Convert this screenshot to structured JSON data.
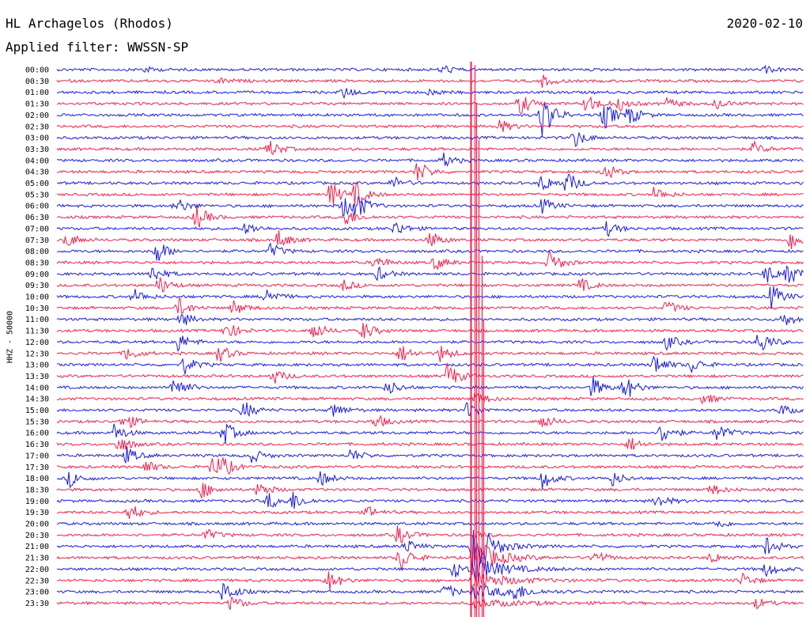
{
  "header": {
    "station": "HL Archagelos (Rhodos)",
    "filter": "Applied filter: WWSSN-SP",
    "date": "2020-02-10"
  },
  "colors": {
    "blue": "#1a1adc",
    "red": "#f0204e",
    "background": "#ffffff"
  },
  "chart_data": {
    "type": "line",
    "title": "HL Archagelos (Rhodos)",
    "subtitle": "Applied filter: WWSSN-SP",
    "ylabel": "HHZ - 50000",
    "xlabel": "",
    "grid": false,
    "rows": [
      "00:00",
      "00:30",
      "01:00",
      "01:30",
      "02:00",
      "02:30",
      "03:00",
      "03:30",
      "04:00",
      "04:30",
      "05:00",
      "05:30",
      "06:00",
      "06:30",
      "07:00",
      "07:30",
      "08:00",
      "08:30",
      "09:00",
      "09:30",
      "10:00",
      "10:30",
      "11:00",
      "11:30",
      "12:00",
      "12:30",
      "13:00",
      "13:30",
      "14:00",
      "14:30",
      "15:00",
      "15:30",
      "16:00",
      "16:30",
      "17:00",
      "17:30",
      "18:00",
      "18:30",
      "19:00",
      "19:30",
      "20:00",
      "20:30",
      "21:00",
      "21:30",
      "22:00",
      "22:30",
      "23:00",
      "23:30"
    ],
    "row_colors": [
      "blue",
      "red"
    ],
    "x_range_minutes": [
      0,
      30
    ],
    "major_event": {
      "row": "21:00",
      "minute": 16.7
    },
    "events": [
      {
        "row": "00:00",
        "minute": 3.5,
        "amp": 0.3
      },
      {
        "row": "00:00",
        "minute": 15.5,
        "amp": 0.5
      },
      {
        "row": "00:00",
        "minute": 28.5,
        "amp": 0.3
      },
      {
        "row": "00:30",
        "minute": 6.5,
        "amp": 0.3
      },
      {
        "row": "00:30",
        "minute": 19.5,
        "amp": 0.6
      },
      {
        "row": "01:00",
        "minute": 11.5,
        "amp": 0.6
      },
      {
        "row": "01:00",
        "minute": 15.0,
        "amp": 0.4
      },
      {
        "row": "01:30",
        "minute": 18.6,
        "amp": 1.2
      },
      {
        "row": "01:30",
        "minute": 21.3,
        "amp": 1.1
      },
      {
        "row": "01:30",
        "minute": 22.6,
        "amp": 0.7
      },
      {
        "row": "01:30",
        "minute": 24.5,
        "amp": 0.6
      },
      {
        "row": "01:30",
        "minute": 26.5,
        "amp": 0.5
      },
      {
        "row": "02:00",
        "minute": 19.5,
        "amp": 2.6
      },
      {
        "row": "02:00",
        "minute": 22.0,
        "amp": 1.5
      },
      {
        "row": "02:00",
        "minute": 23.0,
        "amp": 1.0
      },
      {
        "row": "02:30",
        "minute": 17.8,
        "amp": 0.7
      },
      {
        "row": "03:00",
        "minute": 20.8,
        "amp": 1.0
      },
      {
        "row": "03:30",
        "minute": 8.5,
        "amp": 1.0
      },
      {
        "row": "03:30",
        "minute": 28.0,
        "amp": 0.7
      },
      {
        "row": "04:00",
        "minute": 15.5,
        "amp": 0.8
      },
      {
        "row": "04:30",
        "minute": 14.5,
        "amp": 1.2
      },
      {
        "row": "04:30",
        "minute": 22.0,
        "amp": 1.0
      },
      {
        "row": "05:00",
        "minute": 13.5,
        "amp": 0.7
      },
      {
        "row": "05:00",
        "minute": 19.5,
        "amp": 1.0
      },
      {
        "row": "05:00",
        "minute": 20.5,
        "amp": 1.2
      },
      {
        "row": "05:30",
        "minute": 11.0,
        "amp": 1.4
      },
      {
        "row": "05:30",
        "minute": 12.0,
        "amp": 1.3
      },
      {
        "row": "05:30",
        "minute": 24.0,
        "amp": 0.8
      },
      {
        "row": "06:00",
        "minute": 4.8,
        "amp": 0.9
      },
      {
        "row": "06:00",
        "minute": 11.5,
        "amp": 1.2
      },
      {
        "row": "06:00",
        "minute": 12.0,
        "amp": 1.4
      },
      {
        "row": "06:00",
        "minute": 19.5,
        "amp": 0.8
      },
      {
        "row": "06:30",
        "minute": 5.6,
        "amp": 1.3
      },
      {
        "row": "06:30",
        "minute": 11.6,
        "amp": 1.0
      },
      {
        "row": "07:00",
        "minute": 7.6,
        "amp": 0.7
      },
      {
        "row": "07:00",
        "minute": 13.6,
        "amp": 0.8
      },
      {
        "row": "07:00",
        "minute": 22.1,
        "amp": 0.8
      },
      {
        "row": "07:30",
        "minute": 0.4,
        "amp": 0.8
      },
      {
        "row": "07:30",
        "minute": 8.9,
        "amp": 1.0
      },
      {
        "row": "07:30",
        "minute": 15.0,
        "amp": 0.9
      },
      {
        "row": "07:30",
        "minute": 29.5,
        "amp": 1.2
      },
      {
        "row": "08:00",
        "minute": 4.0,
        "amp": 1.3
      },
      {
        "row": "08:00",
        "minute": 8.6,
        "amp": 0.8
      },
      {
        "row": "08:30",
        "minute": 12.8,
        "amp": 0.8
      },
      {
        "row": "08:30",
        "minute": 15.2,
        "amp": 0.8
      },
      {
        "row": "08:30",
        "minute": 19.8,
        "amp": 1.3
      },
      {
        "row": "09:00",
        "minute": 3.8,
        "amp": 1.0
      },
      {
        "row": "09:00",
        "minute": 12.9,
        "amp": 0.7
      },
      {
        "row": "09:00",
        "minute": 28.5,
        "amp": 1.0
      },
      {
        "row": "09:00",
        "minute": 29.3,
        "amp": 1.4
      },
      {
        "row": "09:30",
        "minute": 4.1,
        "amp": 1.0
      },
      {
        "row": "09:30",
        "minute": 11.5,
        "amp": 0.6
      },
      {
        "row": "09:30",
        "minute": 21.0,
        "amp": 0.8
      },
      {
        "row": "10:00",
        "minute": 3.1,
        "amp": 0.8
      },
      {
        "row": "10:00",
        "minute": 8.4,
        "amp": 1.0
      },
      {
        "row": "10:00",
        "minute": 28.7,
        "amp": 1.3
      },
      {
        "row": "10:30",
        "minute": 4.9,
        "amp": 1.0
      },
      {
        "row": "10:30",
        "minute": 7.1,
        "amp": 0.8
      },
      {
        "row": "10:30",
        "minute": 24.5,
        "amp": 0.8
      },
      {
        "row": "11:00",
        "minute": 5.0,
        "amp": 0.8
      },
      {
        "row": "11:00",
        "minute": 29.2,
        "amp": 0.8
      },
      {
        "row": "11:30",
        "minute": 6.8,
        "amp": 1.0
      },
      {
        "row": "11:30",
        "minute": 10.3,
        "amp": 1.0
      },
      {
        "row": "11:30",
        "minute": 12.3,
        "amp": 1.0
      },
      {
        "row": "12:00",
        "minute": 4.8,
        "amp": 1.2
      },
      {
        "row": "12:00",
        "minute": 24.5,
        "amp": 0.8
      },
      {
        "row": "12:00",
        "minute": 28.2,
        "amp": 1.4
      },
      {
        "row": "12:30",
        "minute": 2.8,
        "amp": 0.8
      },
      {
        "row": "12:30",
        "minute": 6.5,
        "amp": 1.0
      },
      {
        "row": "12:30",
        "minute": 13.8,
        "amp": 1.0
      },
      {
        "row": "12:30",
        "minute": 15.4,
        "amp": 0.9
      },
      {
        "row": "13:00",
        "minute": 5.1,
        "amp": 1.0
      },
      {
        "row": "13:00",
        "minute": 24.0,
        "amp": 1.2
      },
      {
        "row": "13:00",
        "minute": 25.5,
        "amp": 0.8
      },
      {
        "row": "13:30",
        "minute": 15.7,
        "amp": 1.5
      },
      {
        "row": "13:30",
        "minute": 8.7,
        "amp": 0.8
      },
      {
        "row": "14:00",
        "minute": 4.7,
        "amp": 1.5
      },
      {
        "row": "14:00",
        "minute": 13.3,
        "amp": 0.8
      },
      {
        "row": "14:00",
        "minute": 21.5,
        "amp": 1.2
      },
      {
        "row": "14:00",
        "minute": 22.8,
        "amp": 1.5
      },
      {
        "row": "14:30",
        "minute": 16.8,
        "amp": 0.8
      },
      {
        "row": "14:30",
        "minute": 26.0,
        "amp": 0.6
      },
      {
        "row": "15:00",
        "minute": 7.5,
        "amp": 1.0
      },
      {
        "row": "15:00",
        "minute": 11.1,
        "amp": 0.8
      },
      {
        "row": "15:00",
        "minute": 16.5,
        "amp": 0.9
      },
      {
        "row": "15:00",
        "minute": 29.1,
        "amp": 0.6
      },
      {
        "row": "15:30",
        "minute": 2.7,
        "amp": 1.0
      },
      {
        "row": "15:30",
        "minute": 12.8,
        "amp": 0.8
      },
      {
        "row": "15:30",
        "minute": 19.5,
        "amp": 0.8
      },
      {
        "row": "16:00",
        "minute": 2.3,
        "amp": 1.0
      },
      {
        "row": "16:00",
        "minute": 6.7,
        "amp": 1.3
      },
      {
        "row": "16:00",
        "minute": 24.3,
        "amp": 1.2
      },
      {
        "row": "16:00",
        "minute": 26.5,
        "amp": 1.0
      },
      {
        "row": "16:30",
        "minute": 2.5,
        "amp": 1.0
      },
      {
        "row": "16:30",
        "minute": 23.0,
        "amp": 0.8
      },
      {
        "row": "17:00",
        "minute": 2.8,
        "amp": 0.9
      },
      {
        "row": "17:00",
        "minute": 7.8,
        "amp": 0.8
      },
      {
        "row": "17:00",
        "minute": 11.8,
        "amp": 0.7
      },
      {
        "row": "17:30",
        "minute": 3.5,
        "amp": 0.8
      },
      {
        "row": "17:30",
        "minute": 6.2,
        "amp": 1.0
      },
      {
        "row": "17:30",
        "minute": 6.6,
        "amp": 1.0
      },
      {
        "row": "18:00",
        "minute": 0.5,
        "amp": 0.9
      },
      {
        "row": "18:00",
        "minute": 10.6,
        "amp": 0.8
      },
      {
        "row": "18:00",
        "minute": 19.5,
        "amp": 1.2
      },
      {
        "row": "18:00",
        "minute": 22.3,
        "amp": 0.8
      },
      {
        "row": "18:30",
        "minute": 5.8,
        "amp": 1.0
      },
      {
        "row": "18:30",
        "minute": 8.1,
        "amp": 0.9
      },
      {
        "row": "18:30",
        "minute": 26.3,
        "amp": 0.6
      },
      {
        "row": "19:00",
        "minute": 8.5,
        "amp": 0.9
      },
      {
        "row": "19:00",
        "minute": 9.5,
        "amp": 1.0
      },
      {
        "row": "19:00",
        "minute": 24.1,
        "amp": 0.8
      },
      {
        "row": "19:30",
        "minute": 2.9,
        "amp": 1.0
      },
      {
        "row": "19:30",
        "minute": 12.5,
        "amp": 0.6
      },
      {
        "row": "20:00",
        "minute": 26.5,
        "amp": 0.5
      },
      {
        "row": "20:30",
        "minute": 6.0,
        "amp": 0.6
      },
      {
        "row": "20:30",
        "minute": 13.7,
        "amp": 1.0
      },
      {
        "row": "21:00",
        "minute": 14.0,
        "amp": 0.8
      },
      {
        "row": "21:00",
        "minute": 28.5,
        "amp": 1.0
      },
      {
        "row": "21:30",
        "minute": 13.8,
        "amp": 1.5
      },
      {
        "row": "21:30",
        "minute": 21.6,
        "amp": 0.8
      },
      {
        "row": "21:30",
        "minute": 26.3,
        "amp": 0.6
      },
      {
        "row": "22:00",
        "minute": 15.9,
        "amp": 1.0
      },
      {
        "row": "22:00",
        "minute": 28.5,
        "amp": 0.8
      },
      {
        "row": "22:30",
        "minute": 10.9,
        "amp": 1.2
      },
      {
        "row": "22:30",
        "minute": 27.5,
        "amp": 0.8
      },
      {
        "row": "23:00",
        "minute": 6.7,
        "amp": 1.3
      },
      {
        "row": "23:00",
        "minute": 15.6,
        "amp": 0.8
      },
      {
        "row": "23:00",
        "minute": 18.3,
        "amp": 1.0
      },
      {
        "row": "23:30",
        "minute": 7.0,
        "amp": 0.8
      },
      {
        "row": "23:30",
        "minute": 28.1,
        "amp": 0.6
      }
    ]
  }
}
